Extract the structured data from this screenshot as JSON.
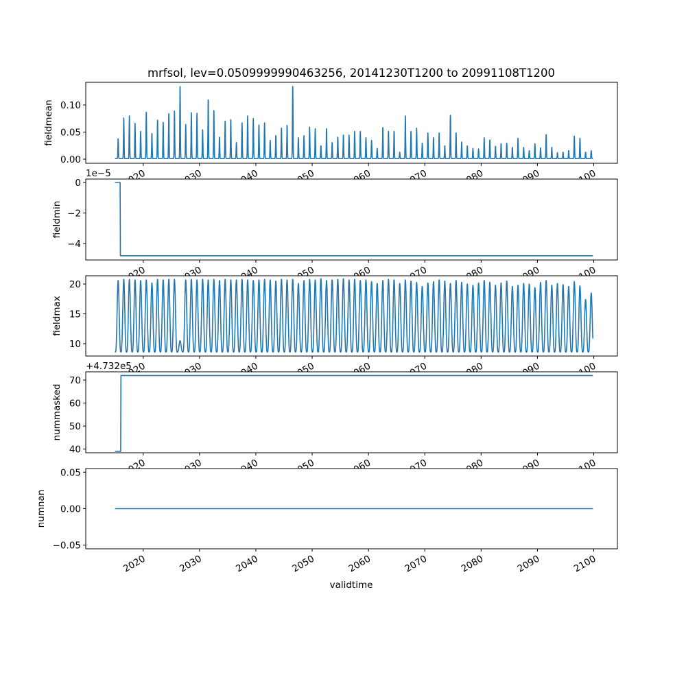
{
  "chart_data": {
    "type": "line",
    "title": "mrfsol, lev=0.0509999990463256, 20141230T1200 to 20991108T1200",
    "xlabel": "validtime",
    "x_ticks": [
      2020,
      2030,
      2040,
      2050,
      2060,
      2070,
      2080,
      2090,
      2100
    ],
    "x_tick_labels": [
      "2020",
      "2030",
      "2040",
      "2050",
      "2060",
      "2070",
      "2080",
      "2090",
      "2100"
    ],
    "xlim": [
      2009.8,
      2104.2
    ],
    "x_range": [
      2015.0,
      2099.85
    ],
    "panels": [
      {
        "ylabel": "fieldmean",
        "offset_text": "",
        "ylim": [
          -0.0076,
          0.1418
        ],
        "yticks": [
          0,
          0.05,
          0.1
        ],
        "ytick_labels": [
          "0.00",
          "0.05",
          "0.10"
        ],
        "kind": "seasonal_peaks",
        "baseline": 0.001,
        "annual_peaks": [
          0.038,
          0.077,
          0.081,
          0.067,
          0.052,
          0.088,
          0.048,
          0.073,
          0.069,
          0.085,
          0.09,
          0.136,
          0.065,
          0.087,
          0.086,
          0.055,
          0.111,
          0.091,
          0.041,
          0.071,
          0.074,
          0.031,
          0.068,
          0.081,
          0.076,
          0.064,
          0.068,
          0.035,
          0.044,
          0.058,
          0.063,
          0.136,
          0.04,
          0.044,
          0.06,
          0.057,
          0.025,
          0.057,
          0.031,
          0.041,
          0.045,
          0.045,
          0.052,
          0.052,
          0.04,
          0.035,
          0.02,
          0.059,
          0.052,
          0.052,
          0.013,
          0.081,
          0.052,
          0.058,
          0.03,
          0.049,
          0.04,
          0.049,
          0.025,
          0.082,
          0.049,
          0.032,
          0.025,
          0.02,
          0.019,
          0.04,
          0.036,
          0.024,
          0.029,
          0.03,
          0.022,
          0.039,
          0.022,
          0.016,
          0.029,
          0.021,
          0.046,
          0.022,
          0.012,
          0.013,
          0.016,
          0.043,
          0.039,
          0.013,
          0.016
        ]
      },
      {
        "ylabel": "fieldmin",
        "offset_text": "1e−5",
        "ylim": [
          -5.08,
          0.225
        ],
        "yticks": [
          0,
          -2,
          -4
        ],
        "ytick_labels": [
          "0",
          "−2",
          "−4"
        ],
        "kind": "step",
        "steps": [
          [
            2015.0,
            0
          ],
          [
            2015.9,
            0
          ],
          [
            2015.95,
            -4.8
          ],
          [
            2099.85,
            -4.8
          ]
        ]
      },
      {
        "ylabel": "fieldmax",
        "offset_text": "",
        "ylim": [
          7.93,
          21.38
        ],
        "yticks": [
          10,
          15,
          20
        ],
        "ytick_labels": [
          "10",
          "15",
          "20"
        ],
        "kind": "seasonal_cycle",
        "annual_min": 8.6,
        "annual_max": [
          20.6,
          20.8,
          20.8,
          20.7,
          20.6,
          20.7,
          20.2,
          20.8,
          20.7,
          20.8,
          20.8,
          10.5,
          20.7,
          20.8,
          20.7,
          20.8,
          20.7,
          20.8,
          20.6,
          20.8,
          20.7,
          20.7,
          20.8,
          20.7,
          20.6,
          20.7,
          20.8,
          20.7,
          20.5,
          20.8,
          20.7,
          20.8,
          20.1,
          20.6,
          20.8,
          20.7,
          20.9,
          20.6,
          20.7,
          20.8,
          20.9,
          20.7,
          20.8,
          20.6,
          20.7,
          20.4,
          20.1,
          20.6,
          20.8,
          20.7,
          20.1,
          20.7,
          20.5,
          20.3,
          19.6,
          20.2,
          20.4,
          20.7,
          20.5,
          20.1,
          20.6,
          20.3,
          20.0,
          19.8,
          20.2,
          20.6,
          20.3,
          19.8,
          20.2,
          20.5,
          19.6,
          19.8,
          20.1,
          20.0,
          19.4,
          20.3,
          20.6,
          19.8,
          20.1,
          19.9,
          19.6,
          20.4,
          19.7,
          17.4,
          18.5
        ]
      },
      {
        "ylabel": "nummasked",
        "offset_text": "+4.732e5",
        "ylim": [
          38.4,
          73.6
        ],
        "yticks": [
          40,
          50,
          60,
          70
        ],
        "ytick_labels": [
          "40",
          "50",
          "60",
          "70"
        ],
        "kind": "step",
        "steps": [
          [
            2015.0,
            39
          ],
          [
            2016.0,
            39
          ],
          [
            2016.05,
            72
          ],
          [
            2099.85,
            72
          ]
        ]
      },
      {
        "ylabel": "numnan",
        "offset_text": "",
        "ylim": [
          -0.055,
          0.055
        ],
        "yticks": [
          -0.05,
          0,
          0.05
        ],
        "ytick_labels": [
          "−0.05",
          "0.00",
          "0.05"
        ],
        "kind": "step",
        "steps": [
          [
            2015.0,
            0
          ],
          [
            2099.85,
            0
          ]
        ]
      }
    ],
    "line_color": "#1f77b4",
    "grid": false
  }
}
